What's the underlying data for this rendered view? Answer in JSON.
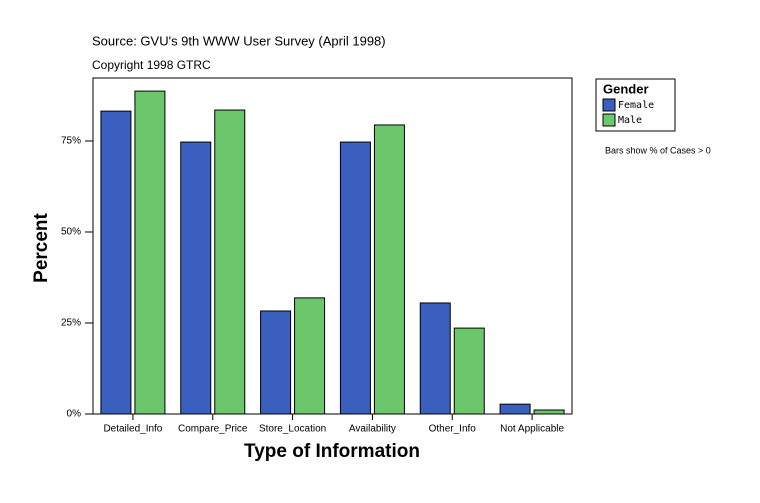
{
  "chart_data": {
    "type": "bar",
    "subtitle": "Source: GVU's 9th WWW User Survey (April 1998)",
    "note": "Copyright 1998 GTRC",
    "x_label": "Type of Information",
    "y_label": "Percent",
    "legend_title": "Gender",
    "annotation": "Bars show % of Cases > 0",
    "categories": [
      "Detailed_Info",
      "Compare_Price",
      "Store_Location",
      "Availability",
      "Other_Info",
      "Not Applicable"
    ],
    "series": [
      {
        "name": "Female",
        "color": "#3a5fbf",
        "values": [
          83.2,
          74.7,
          28.3,
          74.7,
          30.5,
          2.7
        ]
      },
      {
        "name": "Male",
        "color": "#6cc76c",
        "values": [
          88.7,
          83.5,
          31.9,
          79.4,
          23.6,
          1.1
        ]
      }
    ],
    "ylim": [
      0,
      92.3
    ],
    "yticks": [
      {
        "value": 0,
        "label": "0%"
      },
      {
        "value": 25,
        "label": "25%"
      },
      {
        "value": 50,
        "label": "50%"
      },
      {
        "value": 75,
        "label": "75%"
      }
    ],
    "legend": "upper right"
  }
}
